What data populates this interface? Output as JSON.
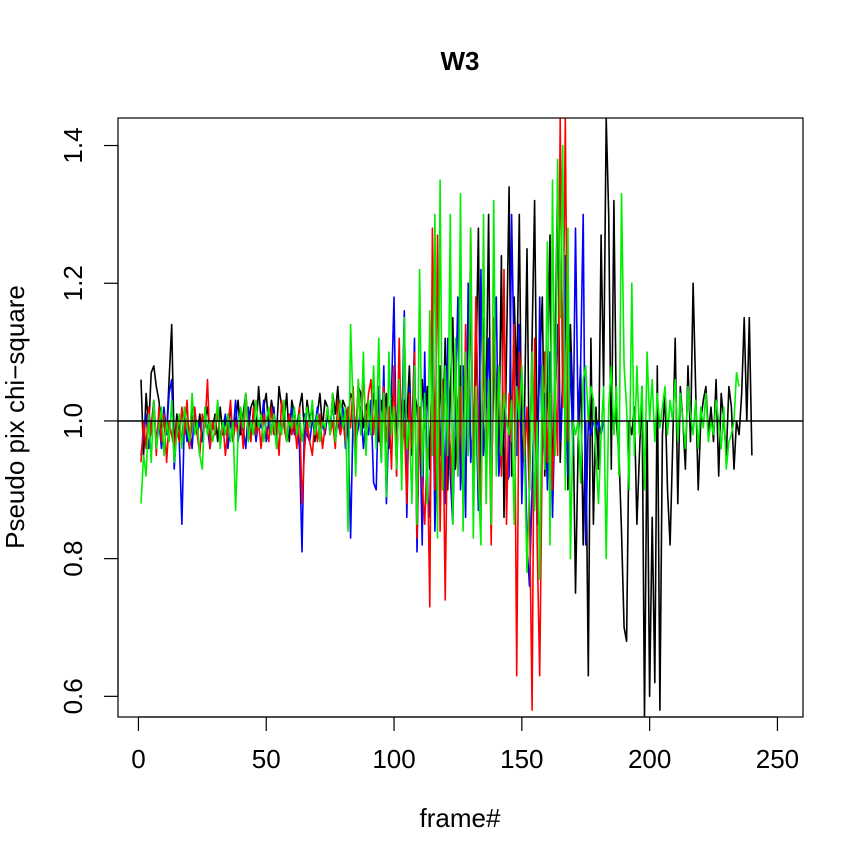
{
  "chart_data": {
    "type": "line",
    "title": "W3",
    "xlabel": "frame#",
    "ylabel": "Pseudo pix chi−square",
    "xlim": [
      -8,
      260
    ],
    "ylim": [
      0.57,
      1.44
    ],
    "x_ticks": [
      0,
      50,
      100,
      150,
      200,
      250
    ],
    "x_tick_labels": [
      "0",
      "50",
      "100",
      "150",
      "200",
      "250"
    ],
    "y_ticks": [
      0.6,
      0.8,
      1.0,
      1.2,
      1.4
    ],
    "y_tick_labels": [
      "0.6",
      "0.8",
      "1.0",
      "1.2",
      "1.4"
    ],
    "reference_line": 1.0,
    "grid": false,
    "legend": "none",
    "series_colors": [
      "#000000",
      "#0000ff",
      "#ff0000",
      "#00ee00"
    ],
    "series": [
      {
        "color": "#000000",
        "x_start": 1,
        "values": [
          1.06,
          0.95,
          1.04,
          0.99,
          1.07,
          1.08,
          1.05,
          1.03,
          0.99,
          1.01,
          0.98,
          1.06,
          1.14,
          0.96,
          1.01,
          0.99,
          0.97,
          1.02,
          0.99,
          0.96,
          1.03,
          1.0,
          0.98,
          1.01,
          0.97,
          1.0,
          1.02,
          0.98,
          0.99,
          1.01,
          0.97,
          1.02,
          0.98,
          1.0,
          0.99,
          1.02,
          0.97,
          1.0,
          1.03,
          0.98,
          1.01,
          1.04,
          0.99,
          1.02,
          1.03,
          0.98,
          1.05,
          1.0,
          1.02,
          1.04,
          0.99,
          1.03,
          1.01,
          0.98,
          1.05,
          1.02,
          1.0,
          1.04,
          0.97,
          1.03,
          1.01,
          0.99,
          1.02,
          1.04,
          0.98,
          1.03,
          1.0,
          1.02,
          0.97,
          1.01,
          1.04,
          0.99,
          1.03,
          1.02,
          0.98,
          1.04,
          1.01,
          1.05,
          0.99,
          1.03,
          1.02,
          1.0,
          1.04,
          1.03,
          0.98,
          1.05,
          1.04,
          0.99,
          1.02,
          1.03,
          0.98,
          1.04,
          1.01,
          0.97,
          1.03,
          1.0,
          1.04,
          0.96,
          1.02,
          1.05,
          0.98,
          1.06,
          0.94,
          1.03,
          1.0,
          1.08,
          0.95,
          1.04,
          1.02,
          0.97,
          1.06,
          0.99,
          1.05,
          0.93,
          1.1,
          1.0,
          0.91,
          1.08,
          0.96,
          1.12,
          0.9,
          1.04,
          1.15,
          0.93,
          1.02,
          1.08,
          0.88,
          1.1,
          0.97,
          1.2,
          0.92,
          1.06,
          1.28,
          0.9,
          1.15,
          1.02,
          1.3,
          0.88,
          1.12,
          1.05,
          0.95,
          1.24,
          0.86,
          1.1,
          1.34,
          0.92,
          1.18,
          1.05,
          1.3,
          0.94,
          1.0,
          1.25,
          0.9,
          1.12,
          1.32,
          0.96,
          1.08,
          1.18,
          0.92,
          1.04,
          1.27,
          0.88,
          1.1,
          1.35,
          0.94,
          1.06,
          1.2,
          0.9,
          1.14,
          1.02,
          0.75,
          0.96,
          1.08,
          0.82,
          1.0,
          0.63,
          1.12,
          0.85,
          1.02,
          0.93,
          1.27,
          1.05,
          1.44,
          1.3,
          0.93,
          1.32,
          1.0,
          0.95,
          0.84,
          0.7,
          0.68,
          1.0,
          0.98,
          1.02,
          0.85,
          0.95,
          1.05,
          0.57,
          1.0,
          0.6,
          0.86,
          0.62,
          1.08,
          0.58,
          0.98,
          1.04,
          0.9,
          0.82,
          0.96,
          1.12,
          0.88,
          1.05,
          1.0,
          0.93,
          1.08,
          0.97,
          1.2,
          1.05,
          0.9,
          1.0,
          1.03,
          1.05,
          0.98,
          1.02,
          0.97,
          1.06,
          0.92,
          1.04,
          1.0,
          0.95,
          1.05,
          1.02,
          0.93,
          1.0,
          0.98,
          1.04,
          1.15,
          1.0,
          1.15,
          0.95
        ]
      },
      {
        "color": "#0000ff",
        "x_start": 1,
        "values": [
          0.95,
          0.98,
          1.01,
          0.96,
          0.99,
          1.03,
          0.97,
          1.0,
          0.96,
          1.02,
          0.98,
          1.04,
          1.06,
          0.93,
          0.99,
          0.97,
          0.85,
          1.01,
          0.97,
          0.99,
          0.96,
          1.02,
          0.98,
          1.0,
          0.97,
          1.01,
          0.99,
          0.96,
          1.0,
          0.98,
          1.02,
          0.97,
          0.99,
          1.01,
          0.96,
          1.0,
          0.98,
          1.03,
          0.97,
          1.0,
          0.99,
          0.96,
          1.02,
          0.98,
          1.01,
          0.97,
          1.0,
          0.99,
          1.03,
          0.97,
          1.0,
          0.98,
          1.02,
          0.96,
          1.0,
          0.99,
          1.01,
          0.97,
          0.99,
          1.02,
          0.98,
          1.0,
          0.96,
          0.81,
          1.01,
          0.98,
          0.97,
          1.0,
          0.99,
          1.02,
          0.97,
          1.0,
          0.98,
          1.01,
          0.99,
          1.03,
          0.97,
          1.0,
          0.98,
          1.02,
          0.96,
          1.0,
          0.83,
          1.01,
          0.97,
          0.99,
          1.02,
          0.96,
          1.0,
          0.98,
          1.03,
          0.91,
          0.9,
          1.05,
          0.94,
          1.08,
          0.88,
          1.0,
          1.04,
          1.18,
          0.92,
          1.07,
          0.98,
          1.16,
          0.86,
          1.05,
          0.97,
          1.12,
          0.81,
          1.02,
          0.82,
          1.1,
          0.9,
          0.86,
          1.15,
          0.84,
          1.0,
          0.95,
          1.06,
          0.88,
          1.12,
          0.92,
          0.85,
          1.02,
          1.18,
          0.9,
          1.08,
          0.86,
          1.2,
          0.94,
          1.0,
          1.04,
          0.87,
          1.22,
          0.95,
          1.02,
          1.12,
          0.9,
          1.06,
          1.18,
          0.92,
          0.97,
          1.02,
          0.91,
          0.92,
          1.3,
          1.08,
          0.95,
          1.14,
          0.88,
          1.02,
          0.82,
          0.76,
          0.9,
          1.06,
          0.85,
          1.18,
          0.95,
          1.04,
          0.9,
          1.1,
          0.86,
          1.02,
          1.14,
          0.97,
          1.06,
          1.24,
          0.92,
          1.1,
          0.95,
          1.28,
          1.0,
          1.08,
          1.3,
          0.82,
          1.0,
          0.98,
          1.0,
          0.99,
          1.0,
          0.98,
          1.0
        ]
      },
      {
        "color": "#ff0000",
        "x_start": 1,
        "values": [
          0.94,
          1.0,
          0.96,
          1.02,
          0.98,
          1.03,
          0.95,
          1.02,
          0.97,
          1.01,
          0.94,
          1.0,
          0.98,
          0.96,
          1.0,
          0.97,
          1.02,
          0.98,
          1.03,
          0.96,
          1.0,
          1.02,
          0.98,
          0.95,
          1.01,
          0.99,
          1.06,
          0.96,
          1.0,
          0.98,
          1.02,
          0.97,
          1.0,
          0.95,
          0.99,
          1.03,
          0.97,
          1.0,
          0.98,
          1.01,
          0.96,
          1.04,
          0.99,
          0.97,
          1.02,
          0.98,
          1.0,
          0.96,
          1.01,
          0.99,
          0.97,
          1.02,
          0.98,
          1.0,
          0.95,
          1.03,
          0.99,
          0.97,
          1.01,
          0.98,
          1.0,
          0.96,
          1.02,
          0.88,
          0.96,
          1.0,
          0.97,
          0.95,
          1.0,
          0.97,
          1.01,
          0.96,
          0.99,
          1.02,
          0.98,
          1.0,
          0.96,
          1.03,
          0.98,
          1.0,
          0.97,
          1.02,
          0.99,
          1.05,
          0.96,
          1.06,
          0.98,
          1.07,
          0.99,
          1.04,
          1.06,
          0.98,
          1.03,
          1.0,
          0.95,
          1.05,
          0.97,
          1.02,
          0.93,
          1.08,
          0.92,
          1.12,
          0.95,
          1.0,
          0.88,
          1.04,
          0.96,
          1.1,
          0.83,
          1.02,
          0.91,
          0.85,
          0.96,
          0.73,
          1.28,
          0.9,
          1.27,
          0.84,
          1.06,
          0.74,
          1.02,
          0.96,
          0.88,
          1.1,
          0.92,
          1.05,
          0.88,
          1.14,
          0.95,
          1.28,
          0.9,
          1.18,
          1.0,
          0.86,
          1.12,
          0.94,
          1.06,
          0.82,
          1.15,
          0.96,
          1.08,
          0.92,
          1.22,
          0.85,
          1.04,
          0.97,
          1.14,
          0.63,
          1.1,
          1.06,
          0.94,
          1.02,
          0.88,
          0.58,
          1.12,
          0.82,
          0.63,
          0.97,
          1.1,
          0.94,
          1.04,
          0.9,
          1.06,
          0.95,
          1.44,
          1.02,
          1.44,
          0.97
        ]
      },
      {
        "color": "#00ee00",
        "x_start": 1,
        "values": [
          0.88,
          0.95,
          0.92,
          1.01,
          0.94,
          1.03,
          0.96,
          0.99,
          1.02,
          0.95,
          1.0,
          0.97,
          1.03,
          0.94,
          0.98,
          1.01,
          0.96,
          1.02,
          0.99,
          0.97,
          1.04,
          0.98,
          1.0,
          0.95,
          0.93,
          1.02,
          0.98,
          1.0,
          0.97,
          0.99,
          1.03,
          0.96,
          1.0,
          0.98,
          1.01,
          0.97,
          1.0,
          0.87,
          0.98,
          1.02,
          0.99,
          1.04,
          0.97,
          1.0,
          0.98,
          1.03,
          0.99,
          1.01,
          0.97,
          1.0,
          1.02,
          0.98,
          1.01,
          0.96,
          1.0,
          0.98,
          1.03,
          0.97,
          1.0,
          0.99,
          1.02,
          0.98,
          1.01,
          0.97,
          1.0,
          1.02,
          0.99,
          1.03,
          0.98,
          1.01,
          0.97,
          1.0,
          0.99,
          1.02,
          0.98,
          1.04,
          0.97,
          1.0,
          1.03,
          0.99,
          1.02,
          0.84,
          1.14,
          1.02,
          0.92,
          1.06,
          0.98,
          1.1,
          0.95,
          1.03,
          0.98,
          1.08,
          0.96,
          1.12,
          0.94,
          1.04,
          0.89,
          1.1,
          0.98,
          1.02,
          0.93,
          1.06,
          0.9,
          1.15,
          0.96,
          1.0,
          0.88,
          1.08,
          0.85,
          1.22,
          0.92,
          1.04,
          0.88,
          1.16,
          0.95,
          1.3,
          0.83,
          1.35,
          0.9,
          1.08,
          0.95,
          1.3,
          0.85,
          1.12,
          0.92,
          1.33,
          0.84,
          1.1,
          0.95,
          1.28,
          0.83,
          1.05,
          0.92,
          0.82,
          1.3,
          0.88,
          1.06,
          0.85,
          1.32,
          0.92,
          1.08,
          0.95,
          1.04,
          1.0,
          0.98,
          1.03,
          0.85,
          1.05,
          1.0,
          1.08,
          0.96,
          0.78,
          0.91,
          1.1,
          0.87,
          1.0,
          0.77,
          1.08,
          0.93,
          1.26,
          0.82,
          1.35,
          0.95,
          1.38,
          1.15,
          1.4,
          0.9,
          1.28,
          0.8,
          1.0,
          0.98,
          1.0,
          0.91,
          1.06,
          1.08,
          1.0,
          1.05,
          1.03,
          0.95,
          0.88,
          0.98,
          1.05,
          0.8,
          1.02,
          1.08,
          0.98,
          1.05,
          0.92,
          1.33,
          1.08,
          1.02,
          0.9,
          1.2,
          0.95,
          1.08,
          0.98,
          1.05,
          0.9,
          1.1,
          1.0,
          1.06,
          0.97,
          1.04,
          0.99,
          1.02,
          1.05,
          0.98,
          1.03,
          1.0,
          1.06,
          0.97,
          1.04,
          1.0,
          0.96,
          1.05,
          1.01,
          0.98,
          1.03,
          0.96,
          1.02,
          0.99,
          1.04,
          0.97,
          1.0,
          0.98,
          1.03,
          1.0,
          0.96,
          1.02,
          0.93,
          0.97,
          0.98,
          1.0,
          1.07,
          1.05
        ]
      }
    ]
  }
}
